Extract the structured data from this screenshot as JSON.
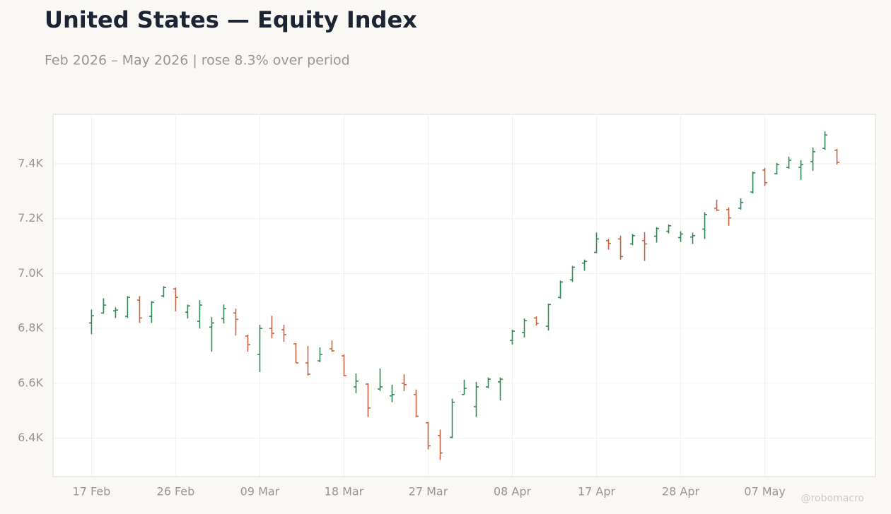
{
  "chart_data": {
    "type": "ohlc",
    "title": "United States — Equity Index",
    "subtitle": "Feb 2026 – May 2026 | rose 8.3% over period",
    "watermark": "@robomacro",
    "categories": [
      "17 Feb",
      null,
      null,
      null,
      null,
      null,
      null,
      "26 Feb",
      null,
      null,
      null,
      null,
      null,
      null,
      "09 Mar",
      null,
      null,
      null,
      null,
      null,
      null,
      "18 Mar",
      null,
      null,
      null,
      null,
      null,
      null,
      "27 Mar",
      null,
      null,
      null,
      null,
      null,
      null,
      "08 Apr",
      null,
      null,
      null,
      null,
      null,
      null,
      "17 Apr",
      null,
      null,
      null,
      null,
      null,
      null,
      "28 Apr",
      null,
      null,
      null,
      null,
      null,
      null,
      "07 May",
      null,
      null,
      null,
      null,
      null,
      null
    ],
    "series": [
      {
        "up_color": "#2e8a52",
        "down_color": "#c9633f",
        "open": [
          6820,
          6856,
          6864,
          6844,
          6903,
          6844,
          6918,
          6944,
          6859,
          6826,
          6805,
          6836,
          6856,
          6772,
          6705,
          6800,
          6795,
          6744,
          6674,
          6682,
          6726,
          6700,
          6587,
          6597,
          6579,
          6554,
          6600,
          6559,
          6456,
          6410,
          6403,
          6559,
          6515,
          6587,
          6605,
          6756,
          6785,
          6838,
          6808,
          6913,
          6977,
          7038,
          7077,
          7120,
          7126,
          7108,
          7120,
          7136,
          7154,
          7131,
          7133,
          7162,
          7238,
          7233,
          7238,
          7297,
          7377,
          7364,
          7387,
          7387,
          7408,
          7456,
          7449
        ],
        "high": [
          6869,
          6910,
          6877,
          6918,
          6918,
          6900,
          6954,
          6949,
          6887,
          6903,
          6841,
          6887,
          6872,
          6777,
          6813,
          6846,
          6813,
          6746,
          6736,
          6731,
          6756,
          6705,
          6636,
          6600,
          6654,
          6595,
          6633,
          6577,
          6459,
          6431,
          6544,
          6613,
          6605,
          6621,
          6621,
          6795,
          6836,
          6844,
          6890,
          6974,
          7028,
          7051,
          7149,
          7126,
          7138,
          7144,
          7151,
          7169,
          7179,
          7154,
          7149,
          7223,
          7269,
          7241,
          7274,
          7372,
          7385,
          7403,
          7426,
          7413,
          7459,
          7518,
          7454
        ],
        "low": [
          6779,
          6854,
          6838,
          6838,
          6820,
          6820,
          6913,
          6862,
          6836,
          6800,
          6715,
          6818,
          6774,
          6715,
          6641,
          6764,
          6751,
          6674,
          6628,
          6677,
          6715,
          6626,
          6564,
          6477,
          6572,
          6531,
          6572,
          6477,
          6359,
          6321,
          6400,
          6559,
          6477,
          6582,
          6538,
          6741,
          6767,
          6810,
          6792,
          6908,
          6969,
          7010,
          7074,
          7087,
          7051,
          7103,
          7046,
          7113,
          7146,
          7115,
          7108,
          7126,
          7228,
          7174,
          7233,
          7292,
          7320,
          7362,
          7382,
          7341,
          7374,
          7451,
          7397
        ],
        "close": [
          6846,
          6885,
          6867,
          6913,
          6838,
          6895,
          6949,
          6913,
          6882,
          6885,
          6820,
          6872,
          6833,
          6741,
          6800,
          6782,
          6777,
          6674,
          6633,
          6705,
          6718,
          6628,
          6608,
          6510,
          6587,
          6559,
          6595,
          6480,
          6372,
          6346,
          6531,
          6582,
          6587,
          6615,
          6615,
          6790,
          6828,
          6818,
          6887,
          6969,
          7023,
          7044,
          7126,
          7110,
          7062,
          7138,
          7108,
          7164,
          7174,
          7144,
          7138,
          7215,
          7231,
          7203,
          7259,
          7367,
          7331,
          7397,
          7413,
          7397,
          7444,
          7505,
          7405
        ]
      }
    ],
    "ylim": [
      6260,
      7580
    ],
    "yticks": [
      {
        "value": 6400,
        "label": "6.4K"
      },
      {
        "value": 6600,
        "label": "6.6K"
      },
      {
        "value": 6800,
        "label": "6.8K"
      },
      {
        "value": 7000,
        "label": "7.0K"
      },
      {
        "value": 7200,
        "label": "7.2K"
      },
      {
        "value": 7400,
        "label": "7.4K"
      }
    ],
    "grid": true
  }
}
